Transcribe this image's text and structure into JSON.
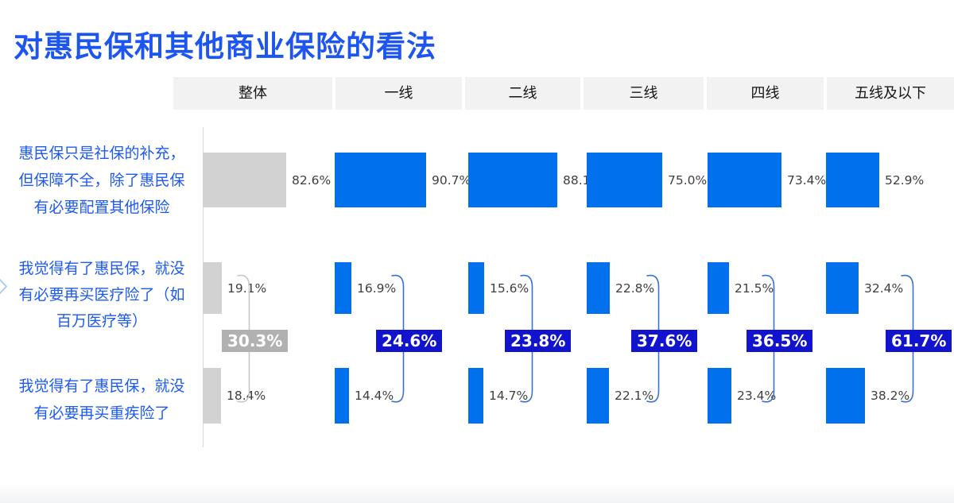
{
  "title": "对惠民保和其他商业保险的看法",
  "nav": {
    "chevron_icon": "›"
  },
  "chart_data": {
    "type": "bar",
    "title": "对惠民保和其他商业保险的看法",
    "unit": "%",
    "orientation": "horizontal",
    "grid": false,
    "legend": null,
    "columns": [
      "整体",
      "一线",
      "二线",
      "三线",
      "四线",
      "五线及以下"
    ],
    "statements": [
      {
        "text": "惠民保只是社保的补充，但保障不全，除了惠民保有必要配置其他保险",
        "lines": [
          "惠民保只是社保的补充，",
          "但保障不全，除了惠民保",
          "有必要配置其他保险"
        ]
      },
      {
        "text": "我觉得有了惠民保，就没有必要再买医疗险了（如百万医疗等）",
        "lines": [
          "我觉得有了惠民保，就没",
          "有必要再买医疗险了（如",
          "百万医疗等）"
        ]
      },
      {
        "text": "我觉得有了惠民保，就没有必要再买重疾险了",
        "lines": [
          "我觉得有了惠民保，就没",
          "有必要再买重疾险了"
        ]
      }
    ],
    "series": [
      {
        "name": "整体",
        "emphasis": "gray",
        "values": [
          82.6,
          19.1,
          18.4
        ],
        "combined": 30.3
      },
      {
        "name": "一线",
        "emphasis": "blue",
        "values": [
          90.7,
          16.9,
          14.4
        ],
        "combined": 24.6
      },
      {
        "name": "二线",
        "emphasis": "blue",
        "values": [
          88.1,
          15.6,
          14.7
        ],
        "combined": 23.8
      },
      {
        "name": "三线",
        "emphasis": "blue",
        "values": [
          75.0,
          22.8,
          22.1
        ],
        "combined": 37.6
      },
      {
        "name": "四线",
        "emphasis": "blue",
        "values": [
          73.4,
          21.5,
          23.4
        ],
        "combined": 36.5
      },
      {
        "name": "五线及以下",
        "emphasis": "blue",
        "values": [
          52.9,
          32.4,
          38.2
        ],
        "combined": 61.7
      }
    ]
  },
  "colors": {
    "title_text": "#1d55f0",
    "statement_text": "#1d5af2",
    "bar_blue": "#0070ec",
    "bar_gray": "#d2d2d2",
    "combined_box_blue": "#1113cd",
    "combined_box_gray": "#b1b1b1",
    "bracket_blue": "#3a6fd6",
    "bracket_gray": "#c8c8c8",
    "value_text": "#3f3f3f",
    "header_bg": "#f2f2f2",
    "header_text": "#161616",
    "axis_line": "#d9d9d9",
    "nav_chevron": "#a9c7f2"
  }
}
